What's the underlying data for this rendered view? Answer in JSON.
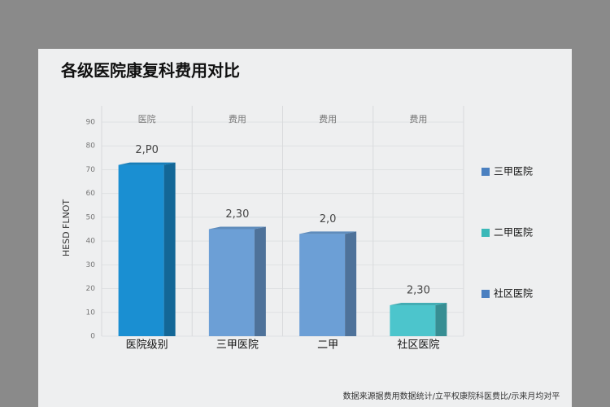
{
  "chart_data": {
    "type": "bar3d",
    "title": "各级医院康复科费用对比",
    "ylabel": "HESD FLNOT",
    "column_headers": [
      "医院",
      "费用",
      "费用",
      "费用"
    ],
    "categories": [
      "医院级别",
      "三甲医院",
      "二甲",
      "社区医院"
    ],
    "values": [
      72,
      45,
      43,
      13
    ],
    "colors": [
      "#1a8fd2",
      "#6c9fd6",
      "#6c9fd6",
      "#4cc5cc"
    ],
    "bar_notes": [
      "2,P0",
      "2,30",
      "2,0",
      "2,30"
    ],
    "ylim": [
      0,
      90
    ],
    "yticks": [
      0,
      10,
      20,
      30,
      40,
      50,
      60,
      70,
      80,
      90
    ],
    "grid": true,
    "legend": {
      "position": "right",
      "items": [
        {
          "name": "三甲医院",
          "color": "#4a80c0"
        },
        {
          "name": "二甲医院",
          "color": "#3ab8b8"
        },
        {
          "name": "社区医院",
          "color": "#4a7fc0"
        }
      ]
    },
    "footer": "数据来源据费用数据统计/立平权康院科医费比/示来月均对平"
  }
}
